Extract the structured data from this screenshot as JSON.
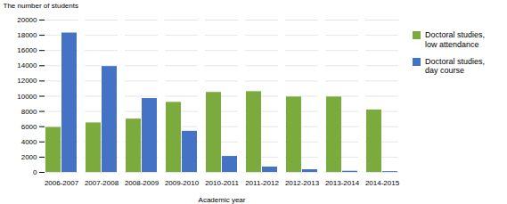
{
  "chart_data": {
    "type": "bar",
    "categories": [
      "2006-2007",
      "2007-2008",
      "2008-2009",
      "2009-2010",
      "2010-2011",
      "2011-2012",
      "2012-2013",
      "2013-2014",
      "2014-2015"
    ],
    "series": [
      {
        "name": "Doctoral studies,\nlow attendance",
        "color": "#7AAB3C",
        "values": [
          5900,
          6500,
          7000,
          9200,
          10500,
          10600,
          9900,
          9900,
          8200
        ]
      },
      {
        "name": "Doctoral studies,\nday course",
        "color": "#4472C4",
        "values": [
          18300,
          13900,
          9700,
          5400,
          2100,
          700,
          350,
          150,
          100
        ]
      }
    ],
    "xlabel": "Academic year",
    "ylabel": "The number of students",
    "ylim": [
      0,
      20000
    ],
    "yticks": [
      0,
      2000,
      4000,
      6000,
      8000,
      10000,
      12000,
      14000,
      16000,
      18000,
      20000
    ],
    "grid": true,
    "legend": "right"
  }
}
